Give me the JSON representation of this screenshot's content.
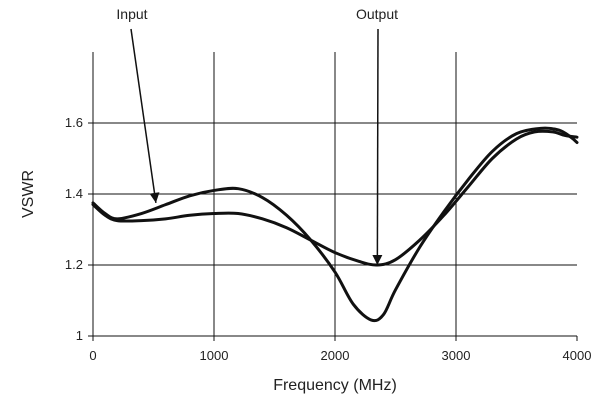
{
  "chart_data": {
    "type": "line",
    "title": "",
    "xlabel": "Frequency (MHz)",
    "ylabel": "VSWR",
    "xlim": [
      0,
      4000
    ],
    "ylim": [
      1.0,
      1.8
    ],
    "grid": true,
    "x_ticks": [
      {
        "value": 0,
        "label": "0"
      },
      {
        "value": 1000,
        "label": "1000"
      },
      {
        "value": 2000,
        "label": "2000"
      },
      {
        "value": 3000,
        "label": "3000"
      },
      {
        "value": 4000,
        "label": "4000"
      }
    ],
    "y_ticks": [
      {
        "value": 1.0,
        "label": "1"
      },
      {
        "value": 1.2,
        "label": "1.2"
      },
      {
        "value": 1.4,
        "label": "1.4"
      },
      {
        "value": 1.6,
        "label": "1.6"
      }
    ],
    "series": [
      {
        "name": "Input",
        "color": "#111111",
        "points": [
          {
            "x": 0,
            "y": 1.375
          },
          {
            "x": 100,
            "y": 1.345
          },
          {
            "x": 200,
            "y": 1.33
          },
          {
            "x": 400,
            "y": 1.345
          },
          {
            "x": 600,
            "y": 1.37
          },
          {
            "x": 800,
            "y": 1.395
          },
          {
            "x": 1000,
            "y": 1.41
          },
          {
            "x": 1200,
            "y": 1.415
          },
          {
            "x": 1400,
            "y": 1.39
          },
          {
            "x": 1600,
            "y": 1.34
          },
          {
            "x": 1800,
            "y": 1.27
          },
          {
            "x": 2000,
            "y": 1.18
          },
          {
            "x": 2150,
            "y": 1.09
          },
          {
            "x": 2300,
            "y": 1.045
          },
          {
            "x": 2400,
            "y": 1.06
          },
          {
            "x": 2500,
            "y": 1.13
          },
          {
            "x": 2700,
            "y": 1.25
          },
          {
            "x": 2900,
            "y": 1.35
          },
          {
            "x": 3100,
            "y": 1.44
          },
          {
            "x": 3300,
            "y": 1.52
          },
          {
            "x": 3500,
            "y": 1.57
          },
          {
            "x": 3700,
            "y": 1.585
          },
          {
            "x": 3850,
            "y": 1.58
          },
          {
            "x": 3950,
            "y": 1.56
          },
          {
            "x": 4000,
            "y": 1.545
          }
        ]
      },
      {
        "name": "Output",
        "color": "#111111",
        "points": [
          {
            "x": 0,
            "y": 1.37
          },
          {
            "x": 100,
            "y": 1.34
          },
          {
            "x": 200,
            "y": 1.325
          },
          {
            "x": 400,
            "y": 1.325
          },
          {
            "x": 600,
            "y": 1.33
          },
          {
            "x": 800,
            "y": 1.34
          },
          {
            "x": 1000,
            "y": 1.345
          },
          {
            "x": 1200,
            "y": 1.345
          },
          {
            "x": 1400,
            "y": 1.33
          },
          {
            "x": 1600,
            "y": 1.305
          },
          {
            "x": 1800,
            "y": 1.27
          },
          {
            "x": 2000,
            "y": 1.235
          },
          {
            "x": 2200,
            "y": 1.21
          },
          {
            "x": 2350,
            "y": 1.2
          },
          {
            "x": 2500,
            "y": 1.215
          },
          {
            "x": 2700,
            "y": 1.27
          },
          {
            "x": 2900,
            "y": 1.34
          },
          {
            "x": 3100,
            "y": 1.42
          },
          {
            "x": 3300,
            "y": 1.5
          },
          {
            "x": 3500,
            "y": 1.555
          },
          {
            "x": 3650,
            "y": 1.575
          },
          {
            "x": 3800,
            "y": 1.575
          },
          {
            "x": 3900,
            "y": 1.565
          },
          {
            "x": 4000,
            "y": 1.56
          }
        ]
      }
    ],
    "annotations": [
      {
        "text": "Input",
        "target_x": 520,
        "target_y": 1.375
      },
      {
        "text": "Output",
        "target_x": 2350,
        "target_y": 1.2
      }
    ]
  }
}
